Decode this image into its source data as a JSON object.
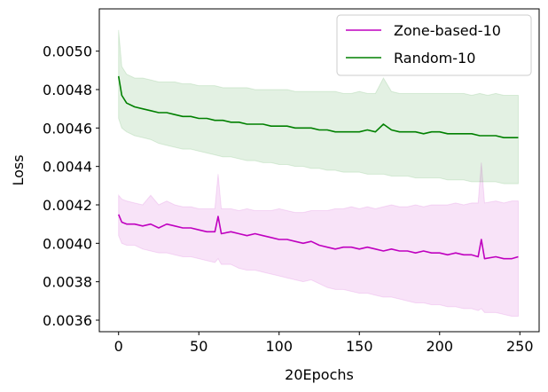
{
  "chart_data": {
    "type": "line",
    "title": "",
    "xlabel": "20Epochs",
    "ylabel": "Loss",
    "xlim": [
      -12,
      262
    ],
    "ylim": [
      0.00354,
      0.00522
    ],
    "xticks": [
      0,
      50,
      100,
      150,
      200,
      250
    ],
    "xtick_labels": [
      "0",
      "50",
      "100",
      "150",
      "200",
      "250"
    ],
    "yticks": [
      0.0036,
      0.0038,
      0.004,
      0.0042,
      0.0044,
      0.0046,
      0.0048,
      0.005
    ],
    "ytick_labels": [
      "0.0036",
      "0.0038",
      "0.0040",
      "0.0042",
      "0.0044",
      "0.0046",
      "0.0048",
      "0.0050"
    ],
    "grid": false,
    "legend_position": "upper-right",
    "series": [
      {
        "name": "Zone-based-10",
        "color": "#bf00bf",
        "band_color": "#bf00bf",
        "x": [
          0,
          2,
          5,
          10,
          15,
          20,
          25,
          30,
          35,
          40,
          45,
          50,
          55,
          60,
          62,
          64,
          70,
          75,
          80,
          85,
          90,
          95,
          100,
          105,
          110,
          115,
          120,
          125,
          130,
          135,
          140,
          145,
          150,
          155,
          160,
          165,
          170,
          175,
          180,
          185,
          190,
          195,
          200,
          205,
          210,
          215,
          220,
          224,
          226,
          228,
          235,
          240,
          245,
          249
        ],
        "values": [
          0.00415,
          0.00411,
          0.0041,
          0.0041,
          0.00409,
          0.0041,
          0.00408,
          0.0041,
          0.00409,
          0.00408,
          0.00408,
          0.00407,
          0.00406,
          0.00406,
          0.00414,
          0.00405,
          0.00406,
          0.00405,
          0.00404,
          0.00405,
          0.00404,
          0.00403,
          0.00402,
          0.00402,
          0.00401,
          0.004,
          0.00401,
          0.00399,
          0.00398,
          0.00397,
          0.00398,
          0.00398,
          0.00397,
          0.00398,
          0.00397,
          0.00396,
          0.00397,
          0.00396,
          0.00396,
          0.00395,
          0.00396,
          0.00395,
          0.00395,
          0.00394,
          0.00395,
          0.00394,
          0.00394,
          0.00393,
          0.00402,
          0.00392,
          0.00393,
          0.00392,
          0.00392,
          0.00393
        ],
        "upper": [
          0.00425,
          0.00423,
          0.00422,
          0.00421,
          0.0042,
          0.00425,
          0.0042,
          0.00422,
          0.0042,
          0.00419,
          0.00419,
          0.00418,
          0.00418,
          0.00418,
          0.00436,
          0.00418,
          0.00418,
          0.00417,
          0.00418,
          0.00417,
          0.00417,
          0.00417,
          0.00418,
          0.00417,
          0.00416,
          0.00416,
          0.00417,
          0.00417,
          0.00417,
          0.00418,
          0.00418,
          0.00419,
          0.00418,
          0.00419,
          0.00418,
          0.00419,
          0.0042,
          0.00419,
          0.00419,
          0.0042,
          0.00419,
          0.0042,
          0.0042,
          0.0042,
          0.00421,
          0.0042,
          0.00421,
          0.00421,
          0.00442,
          0.00421,
          0.00422,
          0.00421,
          0.00422,
          0.00422
        ],
        "lower": [
          0.00404,
          0.004,
          0.00399,
          0.00399,
          0.00397,
          0.00396,
          0.00395,
          0.00395,
          0.00394,
          0.00393,
          0.00393,
          0.00392,
          0.00391,
          0.0039,
          0.00392,
          0.00389,
          0.00389,
          0.00387,
          0.00386,
          0.00386,
          0.00385,
          0.00384,
          0.00383,
          0.00382,
          0.00381,
          0.0038,
          0.00381,
          0.00379,
          0.00377,
          0.00376,
          0.00376,
          0.00375,
          0.00374,
          0.00374,
          0.00373,
          0.00372,
          0.00372,
          0.00371,
          0.0037,
          0.00369,
          0.00369,
          0.00368,
          0.00368,
          0.00367,
          0.00367,
          0.00366,
          0.00366,
          0.00365,
          0.00366,
          0.00364,
          0.00364,
          0.00363,
          0.00362,
          0.00362
        ]
      },
      {
        "name": "Random-10",
        "color": "#008000",
        "band_color": "#008000",
        "x": [
          0,
          2,
          5,
          10,
          15,
          20,
          25,
          30,
          35,
          40,
          45,
          50,
          55,
          60,
          65,
          70,
          75,
          80,
          85,
          90,
          95,
          100,
          105,
          110,
          115,
          120,
          125,
          130,
          135,
          140,
          145,
          150,
          155,
          160,
          165,
          170,
          175,
          180,
          185,
          190,
          195,
          200,
          205,
          210,
          215,
          220,
          225,
          230,
          235,
          240,
          245,
          249
        ],
        "values": [
          0.00487,
          0.00477,
          0.00473,
          0.00471,
          0.0047,
          0.00469,
          0.00468,
          0.00468,
          0.00467,
          0.00466,
          0.00466,
          0.00465,
          0.00465,
          0.00464,
          0.00464,
          0.00463,
          0.00463,
          0.00462,
          0.00462,
          0.00462,
          0.00461,
          0.00461,
          0.00461,
          0.0046,
          0.0046,
          0.0046,
          0.00459,
          0.00459,
          0.00458,
          0.00458,
          0.00458,
          0.00458,
          0.00459,
          0.00458,
          0.00462,
          0.00459,
          0.00458,
          0.00458,
          0.00458,
          0.00457,
          0.00458,
          0.00458,
          0.00457,
          0.00457,
          0.00457,
          0.00457,
          0.00456,
          0.00456,
          0.00456,
          0.00455,
          0.00455,
          0.00455
        ],
        "upper": [
          0.00511,
          0.00492,
          0.00488,
          0.00486,
          0.00486,
          0.00485,
          0.00484,
          0.00484,
          0.00484,
          0.00483,
          0.00483,
          0.00482,
          0.00482,
          0.00482,
          0.00481,
          0.00481,
          0.00481,
          0.00481,
          0.0048,
          0.0048,
          0.0048,
          0.0048,
          0.0048,
          0.00479,
          0.00479,
          0.00479,
          0.00479,
          0.00479,
          0.00479,
          0.00478,
          0.00478,
          0.00479,
          0.00478,
          0.00478,
          0.00486,
          0.00479,
          0.00478,
          0.00478,
          0.00478,
          0.00478,
          0.00478,
          0.00478,
          0.00478,
          0.00478,
          0.00478,
          0.00477,
          0.00478,
          0.00477,
          0.00478,
          0.00477,
          0.00477,
          0.00477
        ],
        "lower": [
          0.00465,
          0.0046,
          0.00458,
          0.00456,
          0.00455,
          0.00454,
          0.00452,
          0.00451,
          0.0045,
          0.00449,
          0.00449,
          0.00448,
          0.00447,
          0.00446,
          0.00445,
          0.00445,
          0.00444,
          0.00443,
          0.00443,
          0.00442,
          0.00442,
          0.00441,
          0.00441,
          0.0044,
          0.0044,
          0.00439,
          0.00439,
          0.00438,
          0.00438,
          0.00437,
          0.00437,
          0.00437,
          0.00436,
          0.00436,
          0.00436,
          0.00435,
          0.00435,
          0.00435,
          0.00434,
          0.00434,
          0.00434,
          0.00434,
          0.00433,
          0.00433,
          0.00433,
          0.00432,
          0.00432,
          0.00432,
          0.00432,
          0.00431,
          0.00431,
          0.00431
        ]
      }
    ]
  }
}
